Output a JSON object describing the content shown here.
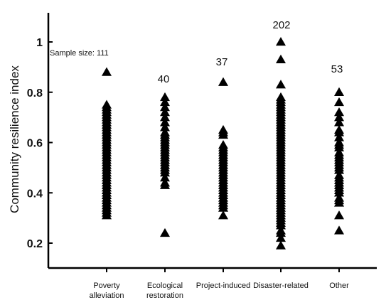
{
  "chart_data": {
    "type": "scatter",
    "ylabel": "Community resilience index",
    "xlabel": "",
    "ylim": [
      0.15,
      1.12
    ],
    "yticks": [
      "0.2",
      "0.4",
      "0.6",
      "0.8",
      "1"
    ],
    "marker": "triangle",
    "marker_color": "#000000",
    "categories": [
      {
        "label_lines": [
          "Poverty",
          "alleviation"
        ],
        "sample_label": "Sample size: 111",
        "values": [
          0.88,
          0.75,
          0.74,
          0.73,
          0.72,
          0.71,
          0.7,
          0.69,
          0.68,
          0.67,
          0.66,
          0.65,
          0.64,
          0.63,
          0.62,
          0.61,
          0.6,
          0.59,
          0.58,
          0.57,
          0.56,
          0.55,
          0.54,
          0.53,
          0.52,
          0.51,
          0.5,
          0.49,
          0.48,
          0.47,
          0.46,
          0.45,
          0.44,
          0.43,
          0.42,
          0.41,
          0.4,
          0.39,
          0.38,
          0.37,
          0.36,
          0.35,
          0.34,
          0.33,
          0.32,
          0.31
        ]
      },
      {
        "label_lines": [
          "Ecological",
          "restoration"
        ],
        "sample_label": "40",
        "values": [
          0.78,
          0.76,
          0.74,
          0.72,
          0.7,
          0.68,
          0.66,
          0.64,
          0.63,
          0.62,
          0.61,
          0.6,
          0.59,
          0.58,
          0.57,
          0.56,
          0.55,
          0.54,
          0.53,
          0.52,
          0.51,
          0.5,
          0.49,
          0.48,
          0.46,
          0.44,
          0.43,
          0.24
        ]
      },
      {
        "label_lines": [
          "Project-induced"
        ],
        "sample_label": "37",
        "values": [
          0.84,
          0.65,
          0.64,
          0.63,
          0.59,
          0.58,
          0.57,
          0.56,
          0.55,
          0.54,
          0.53,
          0.52,
          0.51,
          0.5,
          0.49,
          0.48,
          0.47,
          0.46,
          0.45,
          0.44,
          0.43,
          0.42,
          0.41,
          0.4,
          0.39,
          0.38,
          0.37,
          0.36,
          0.35,
          0.34,
          0.31
        ]
      },
      {
        "label_lines": [
          "Disaster-related"
        ],
        "sample_label": "202",
        "values": [
          1.0,
          0.93,
          0.83,
          0.78,
          0.77,
          0.76,
          0.75,
          0.74,
          0.73,
          0.72,
          0.71,
          0.7,
          0.69,
          0.68,
          0.67,
          0.66,
          0.65,
          0.64,
          0.63,
          0.62,
          0.61,
          0.6,
          0.59,
          0.58,
          0.57,
          0.56,
          0.55,
          0.54,
          0.53,
          0.52,
          0.51,
          0.5,
          0.49,
          0.48,
          0.47,
          0.46,
          0.45,
          0.44,
          0.43,
          0.42,
          0.41,
          0.4,
          0.39,
          0.38,
          0.37,
          0.36,
          0.35,
          0.34,
          0.33,
          0.32,
          0.31,
          0.3,
          0.29,
          0.28,
          0.27,
          0.25,
          0.24,
          0.22,
          0.19
        ]
      },
      {
        "label_lines": [
          "Other"
        ],
        "sample_label": "53",
        "values": [
          0.8,
          0.76,
          0.72,
          0.7,
          0.68,
          0.65,
          0.64,
          0.62,
          0.6,
          0.59,
          0.58,
          0.56,
          0.55,
          0.54,
          0.53,
          0.52,
          0.51,
          0.5,
          0.49,
          0.47,
          0.46,
          0.45,
          0.44,
          0.43,
          0.42,
          0.41,
          0.4,
          0.38,
          0.37,
          0.36,
          0.31,
          0.25
        ]
      }
    ]
  }
}
